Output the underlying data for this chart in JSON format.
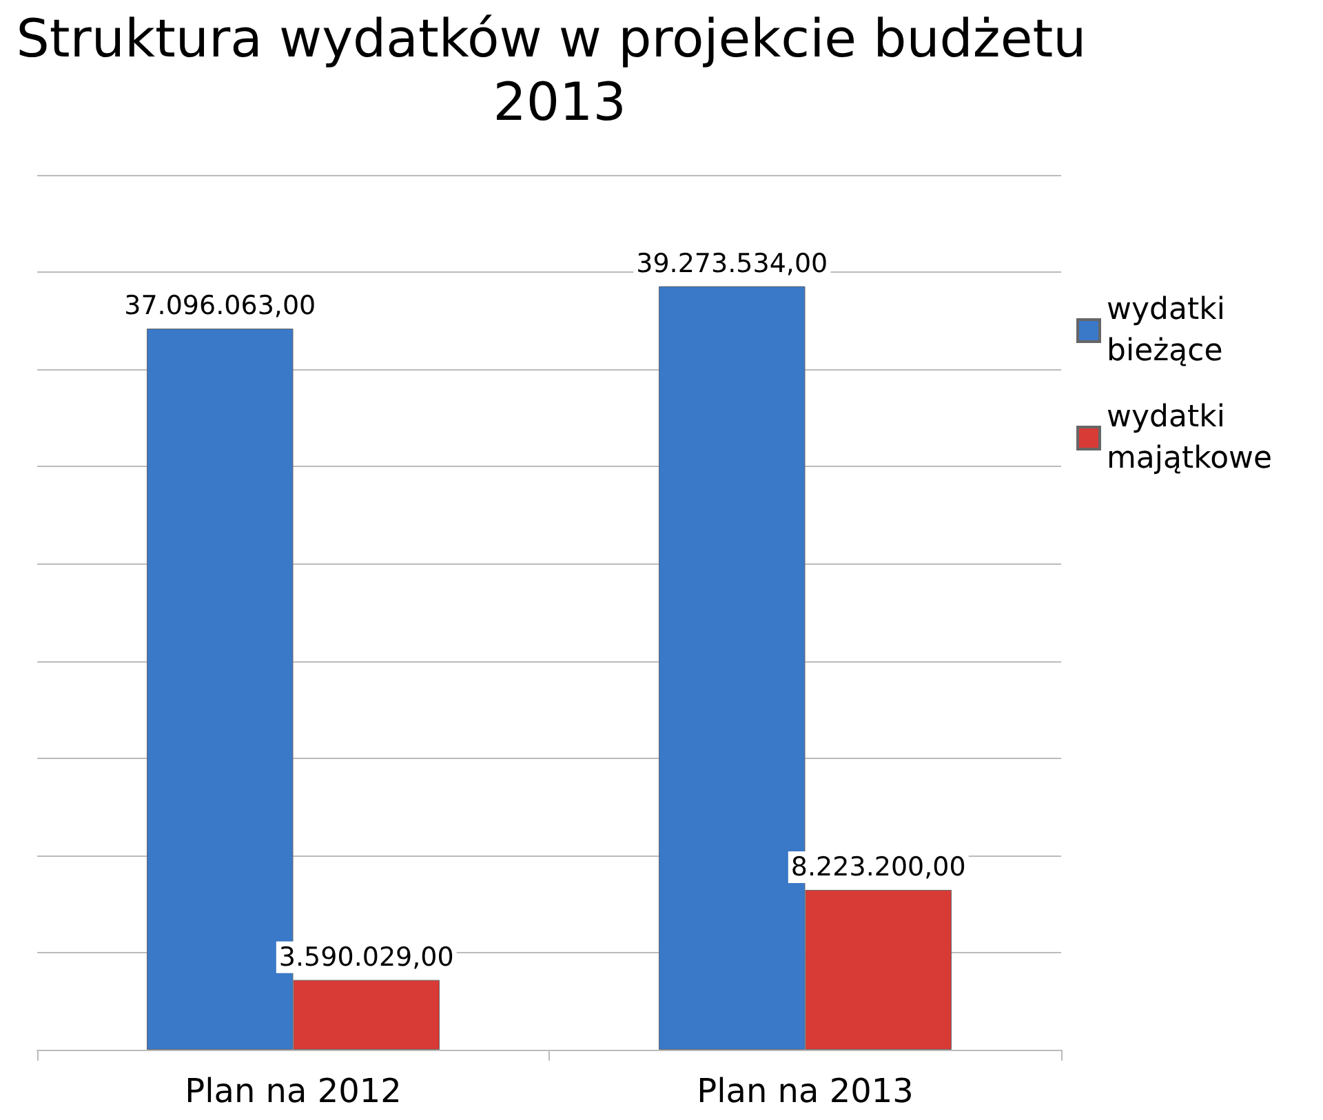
{
  "chart_data": {
    "type": "bar",
    "title": "Struktura wydatków w projekcie budżetu 2013",
    "categories": [
      "Plan na 2012",
      "Plan na 2013"
    ],
    "series": [
      {
        "name": "wydatki bieżące",
        "color": "#3a78c8",
        "values": [
          37096063,
          39273534
        ],
        "value_labels": [
          "37.096.063,00",
          "39.273.534,00"
        ]
      },
      {
        "name": "wydatki majątkowe",
        "color": "#d83a36",
        "values": [
          3590029,
          8223200
        ],
        "value_labels": [
          "3.590.029,00",
          "8.223.200,00"
        ]
      }
    ],
    "ylim": [
      0,
      45000000
    ],
    "yticks": [
      {
        "value": 0,
        "label": null
      },
      {
        "value": 5000000,
        "label": null
      },
      {
        "value": 10000000,
        "label": null
      },
      {
        "value": 15000000,
        "label": null
      },
      {
        "value": 20000000,
        "label": null
      },
      {
        "value": 25000000,
        "label": null
      },
      {
        "value": 30000000,
        "label": null
      },
      {
        "value": 35000000,
        "label": null
      },
      {
        "value": 40000000,
        "label": null
      },
      {
        "value": 45000000,
        "label": null
      }
    ],
    "grid": "y",
    "legend": "right",
    "tick_labels": "x"
  }
}
